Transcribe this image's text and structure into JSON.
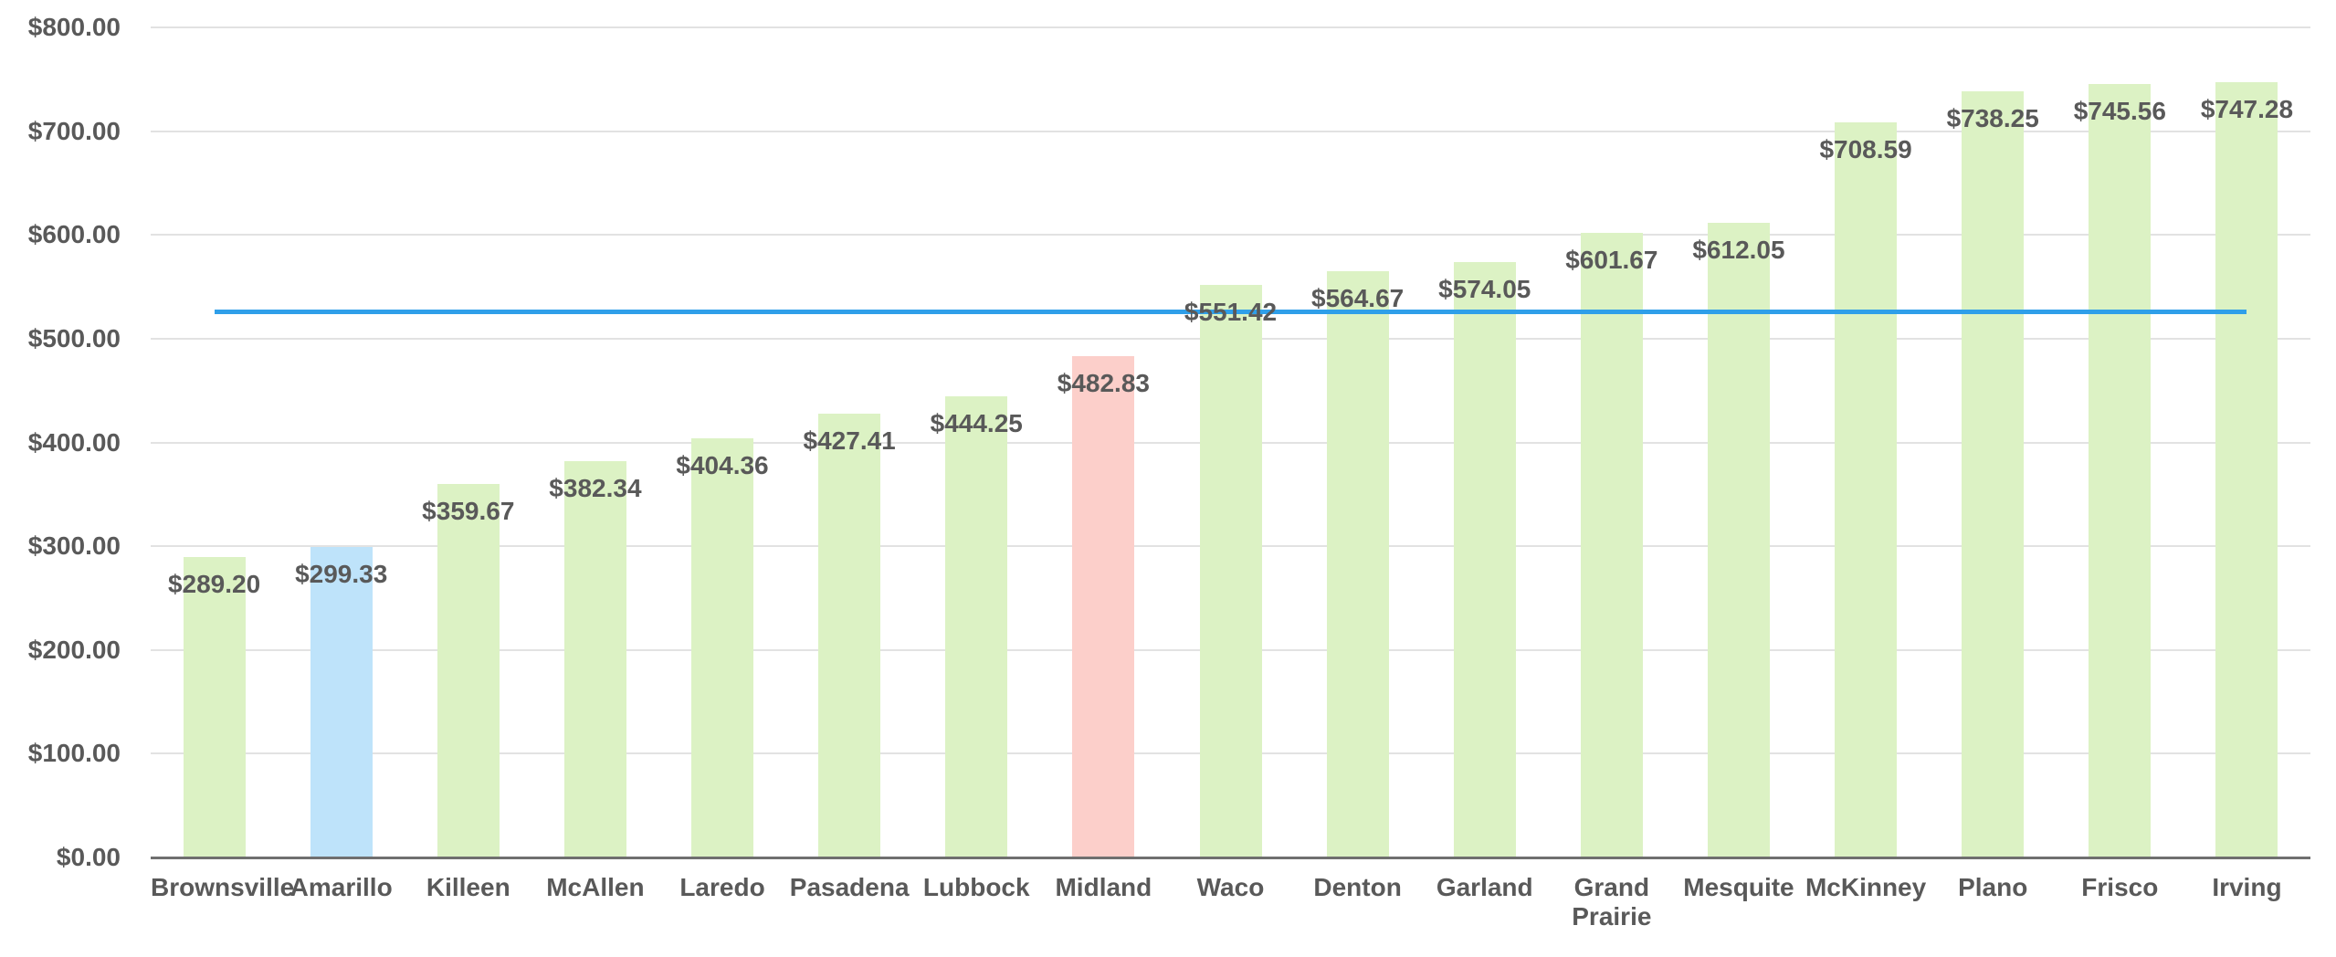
{
  "chart_data": {
    "type": "bar",
    "title": "",
    "xlabel": "",
    "ylabel": "",
    "categories": [
      "Brownsville",
      "Amarillo",
      "Killeen",
      "McAllen",
      "Laredo",
      "Pasadena",
      "Lubbock",
      "Midland",
      "Waco",
      "Denton",
      "Garland",
      "Grand Prairie",
      "Mesquite",
      "McKinney",
      "Plano",
      "Frisco",
      "Irving"
    ],
    "values": [
      289.2,
      299.33,
      359.67,
      382.34,
      404.36,
      427.41,
      444.25,
      482.83,
      551.42,
      564.67,
      574.05,
      601.67,
      612.05,
      708.59,
      738.25,
      745.56,
      747.28
    ],
    "value_labels": [
      "$289.20",
      "$299.33",
      "$359.67",
      "$382.34",
      "$404.36",
      "$427.41",
      "$444.25",
      "$482.83",
      "$551.42",
      "$564.67",
      "$574.05",
      "$601.67",
      "$612.05",
      "$708.59",
      "$738.25",
      "$745.56",
      "$747.28"
    ],
    "bar_colors": [
      "#dcf2c4",
      "#bee3fa",
      "#dcf2c4",
      "#dcf2c4",
      "#dcf2c4",
      "#dcf2c4",
      "#dcf2c4",
      "#fccfca",
      "#dcf2c4",
      "#dcf2c4",
      "#dcf2c4",
      "#dcf2c4",
      "#dcf2c4",
      "#dcf2c4",
      "#dcf2c4",
      "#dcf2c4",
      "#dcf2c4"
    ],
    "highlighted_bars": {
      "Amarillo": "#bee3fa",
      "Midland": "#fccfca"
    },
    "average_line": {
      "value": 525.47,
      "color": "#2f9fe9"
    },
    "y_axis": {
      "min": 0,
      "max": 800,
      "step": 100,
      "tick_labels": [
        "$0.00",
        "$100.00",
        "$200.00",
        "$300.00",
        "$400.00",
        "$500.00",
        "$600.00",
        "$700.00",
        "$800.00"
      ]
    },
    "ylim": [
      0,
      800
    ],
    "grid": true,
    "legend": false,
    "colors": {
      "label_text": "#595959",
      "gridline": "#e2e2e2",
      "axis_line": "#6f6f6f",
      "background": "#ffffff"
    }
  }
}
